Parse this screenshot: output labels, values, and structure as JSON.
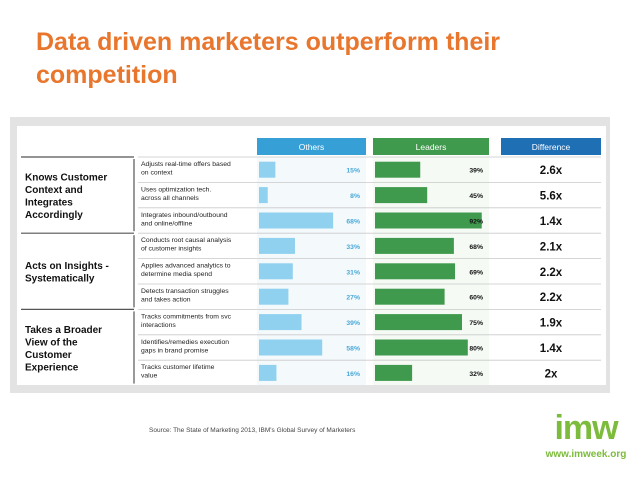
{
  "slide": {
    "title_line1": "Data driven marketers outperform their",
    "title_line2": "competition",
    "source": "Source: The State of Marketing 2013, IBM's Global Survey of Marketers"
  },
  "logo": {
    "text": "imw",
    "url": "www.imweek.org"
  },
  "colors": {
    "title": "#e8762d",
    "others_bar": "#8fd1ee",
    "others_text": "#49a8d8",
    "leaders_bar": "#3f9a4d",
    "header_blue": "#36a0d6",
    "header_green": "#3f9a4d",
    "header_navy": "#1f6fb5"
  },
  "chart_data": {
    "type": "bar",
    "column_headers": [
      "Others",
      "Leaders",
      "Difference"
    ],
    "groups": [
      {
        "name": "Knows Customer Context and Integrates Accordingly",
        "lines": [
          "Knows Customer",
          "Context and",
          "Integrates",
          "Accordingly"
        ]
      },
      {
        "name": "Acts on Insights - Systematically",
        "lines": [
          "Acts on Insights -",
          "Systematically"
        ]
      },
      {
        "name": "Takes a Broader View of the Customer Experience",
        "lines": [
          "Takes a Broader",
          "View of the",
          "Customer",
          "Experience"
        ]
      }
    ],
    "rows": [
      {
        "group": 0,
        "label": [
          "Adjusts real-time offers based",
          "on context"
        ],
        "others": 15,
        "leaders": 39,
        "difference": "2.6x"
      },
      {
        "group": 0,
        "label": [
          "Uses optimization tech.",
          "across all channels"
        ],
        "others": 8,
        "leaders": 45,
        "difference": "5.6x"
      },
      {
        "group": 0,
        "label": [
          "Integrates inbound/outbound",
          "and online/offline"
        ],
        "others": 68,
        "leaders": 92,
        "difference": "1.4x"
      },
      {
        "group": 1,
        "label": [
          "Conducts root causal analysis",
          "of customer insights"
        ],
        "others": 33,
        "leaders": 68,
        "difference": "2.1x"
      },
      {
        "group": 1,
        "label": [
          "Applies advanced analytics to",
          "determine media spend"
        ],
        "others": 31,
        "leaders": 69,
        "difference": "2.2x"
      },
      {
        "group": 1,
        "label": [
          "Detects transaction struggles",
          "and takes action"
        ],
        "others": 27,
        "leaders": 60,
        "difference": "2.2x"
      },
      {
        "group": 2,
        "label": [
          "Tracks commitments from svc",
          "interactions"
        ],
        "others": 39,
        "leaders": 75,
        "difference": "1.9x"
      },
      {
        "group": 2,
        "label": [
          "Identifies/remedies execution",
          "gaps in brand promise"
        ],
        "others": 58,
        "leaders": 80,
        "difference": "1.4x"
      },
      {
        "group": 2,
        "label": [
          "Tracks customer lifetime",
          "value"
        ],
        "others": 16,
        "leaders": 32,
        "difference": "2x"
      }
    ],
    "value_suffix": "%",
    "ylim": [
      0,
      100
    ]
  }
}
